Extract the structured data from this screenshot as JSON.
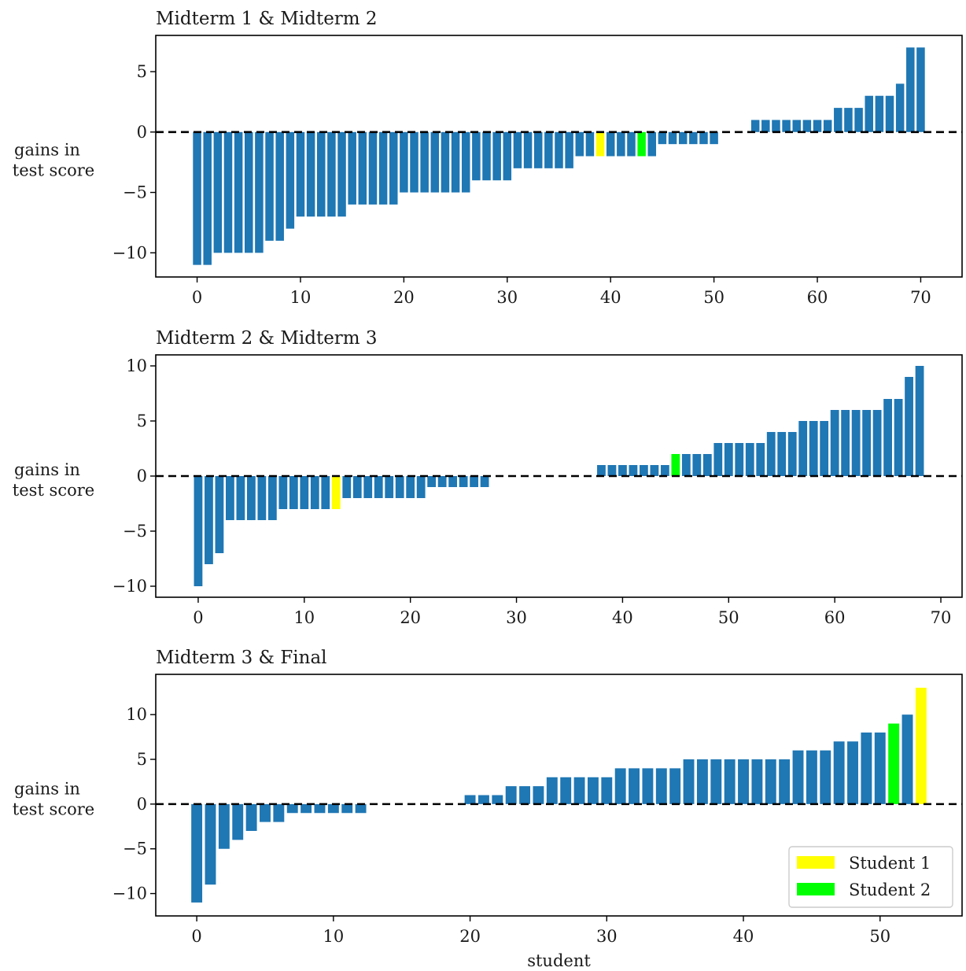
{
  "figure": {
    "ylabel": "gains in test score",
    "xlabel": "student"
  },
  "colors": {
    "bar": "#1f77b4",
    "student_1": "#ffff00",
    "student_2": "#00ff00",
    "zero_line": "#000000"
  },
  "legend": {
    "placement": "lower-right",
    "entries": [
      {
        "label": "Student 1",
        "color": "#ffff00"
      },
      {
        "label": "Student 2",
        "color": "#00ff00"
      }
    ]
  },
  "chart_data": [
    {
      "type": "bar",
      "title": "Midterm 1 & Midterm 2",
      "xlabel": "",
      "ylabel": "gains in test score",
      "xlim": [
        -4,
        74
      ],
      "ylim": [
        -12,
        8
      ],
      "xticks": [
        0,
        10,
        20,
        30,
        40,
        50,
        60,
        70
      ],
      "yticks": [
        -10,
        -5,
        0,
        5
      ],
      "x": [
        0,
        1,
        2,
        3,
        4,
        5,
        6,
        7,
        8,
        9,
        10,
        11,
        12,
        13,
        14,
        15,
        16,
        17,
        18,
        19,
        20,
        21,
        22,
        23,
        24,
        25,
        26,
        27,
        28,
        29,
        30,
        31,
        32,
        33,
        34,
        35,
        36,
        37,
        38,
        39,
        40,
        41,
        42,
        43,
        44,
        45,
        46,
        47,
        48,
        49,
        50,
        51,
        52,
        53,
        54,
        55,
        56,
        57,
        58,
        59,
        60,
        61,
        62,
        63,
        64,
        65,
        66,
        67,
        68,
        69,
        70
      ],
      "values": [
        -11,
        -11,
        -10,
        -10,
        -10,
        -10,
        -10,
        -9,
        -9,
        -8,
        -7,
        -7,
        -7,
        -7,
        -7,
        -6,
        -6,
        -6,
        -6,
        -6,
        -5,
        -5,
        -5,
        -5,
        -5,
        -5,
        -5,
        -4,
        -4,
        -4,
        -4,
        -3,
        -3,
        -3,
        -3,
        -3,
        -3,
        -2,
        -2,
        -2,
        -2,
        -2,
        -2,
        -2,
        -2,
        -1,
        -1,
        -1,
        -1,
        -1,
        -1,
        0,
        0,
        0,
        1,
        1,
        1,
        1,
        1,
        1,
        1,
        1,
        2,
        2,
        2,
        3,
        3,
        3,
        4,
        7,
        7
      ],
      "highlights": {
        "student_1": 39,
        "student_2": 43
      },
      "zero_line": true
    },
    {
      "type": "bar",
      "title": "Midterm 2 & Midterm 3",
      "xlabel": "",
      "ylabel": "gains in test score",
      "xlim": [
        -4,
        72
      ],
      "ylim": [
        -11,
        11
      ],
      "xticks": [
        0,
        10,
        20,
        30,
        40,
        50,
        60,
        70
      ],
      "yticks": [
        -10,
        -5,
        0,
        5,
        10
      ],
      "x": [
        0,
        1,
        2,
        3,
        4,
        5,
        6,
        7,
        8,
        9,
        10,
        11,
        12,
        13,
        14,
        15,
        16,
        17,
        18,
        19,
        20,
        21,
        22,
        23,
        24,
        25,
        26,
        27,
        28,
        29,
        30,
        31,
        32,
        33,
        34,
        35,
        36,
        37,
        38,
        39,
        40,
        41,
        42,
        43,
        44,
        45,
        46,
        47,
        48,
        49,
        50,
        51,
        52,
        53,
        54,
        55,
        56,
        57,
        58,
        59,
        60,
        61,
        62,
        63,
        64,
        65,
        66,
        67,
        68
      ],
      "values": [
        -10,
        -8,
        -7,
        -4,
        -4,
        -4,
        -4,
        -4,
        -3,
        -3,
        -3,
        -3,
        -3,
        -3,
        -2,
        -2,
        -2,
        -2,
        -2,
        -2,
        -2,
        -2,
        -1,
        -1,
        -1,
        -1,
        -1,
        -1,
        0,
        0,
        0,
        0,
        0,
        0,
        0,
        0,
        0,
        0,
        1,
        1,
        1,
        1,
        1,
        1,
        1,
        2,
        2,
        2,
        2,
        3,
        3,
        3,
        3,
        3,
        4,
        4,
        4,
        5,
        5,
        5,
        6,
        6,
        6,
        6,
        6,
        7,
        7,
        9,
        10
      ],
      "highlights": {
        "student_1": 13,
        "student_2": 45
      },
      "zero_line": true
    },
    {
      "type": "bar",
      "title": "Midterm 3 & Final",
      "xlabel": "student",
      "ylabel": "gains in test score",
      "xlim": [
        -3,
        56
      ],
      "ylim": [
        -12.5,
        14.5
      ],
      "xticks": [
        0,
        10,
        20,
        30,
        40,
        50
      ],
      "yticks": [
        -10,
        -5,
        0,
        5,
        10
      ],
      "x": [
        0,
        1,
        2,
        3,
        4,
        5,
        6,
        7,
        8,
        9,
        10,
        11,
        12,
        13,
        14,
        15,
        16,
        17,
        18,
        19,
        20,
        21,
        22,
        23,
        24,
        25,
        26,
        27,
        28,
        29,
        30,
        31,
        32,
        33,
        34,
        35,
        36,
        37,
        38,
        39,
        40,
        41,
        42,
        43,
        44,
        45,
        46,
        47,
        48,
        49,
        50,
        51,
        52,
        53
      ],
      "values": [
        -11,
        -9,
        -5,
        -4,
        -3,
        -2,
        -2,
        -1,
        -1,
        -1,
        -1,
        -1,
        -1,
        0,
        0,
        0,
        0,
        0,
        0,
        0,
        1,
        1,
        1,
        2,
        2,
        2,
        3,
        3,
        3,
        3,
        3,
        4,
        4,
        4,
        4,
        4,
        5,
        5,
        5,
        5,
        5,
        5,
        5,
        5,
        6,
        6,
        6,
        7,
        7,
        8,
        8,
        9,
        10,
        13
      ],
      "highlights": {
        "student_1": 53,
        "student_2": 51
      },
      "zero_line": true
    }
  ]
}
